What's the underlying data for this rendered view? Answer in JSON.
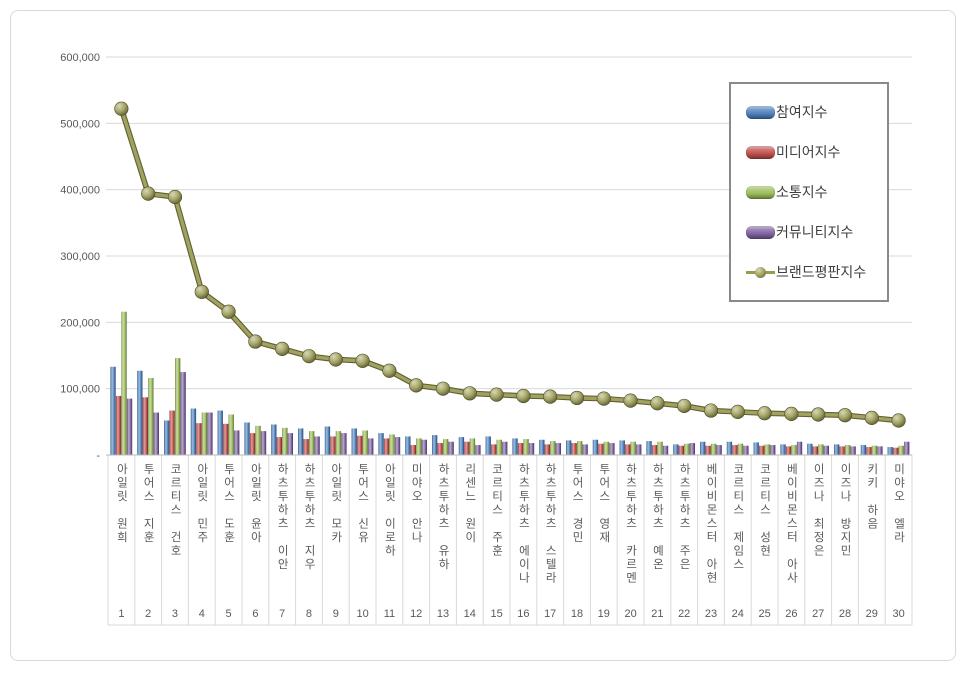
{
  "chart_data": {
    "type": "bar",
    "note": "grouped bar chart with overlaid line series (brand reputation ranking chart)",
    "categories": [
      "아일릿 원희",
      "투어스 지훈",
      "코르티스 건호",
      "아일릿 민주",
      "투어스 도훈",
      "아일릿 윤아",
      "하츠투하츠 이안",
      "하츠투하츠 지우",
      "아일릿 모카",
      "투어스 신유",
      "아일릿 이로하",
      "미야오 안나",
      "하츠투하츠 유하",
      "리센느 원이",
      "코르티스 주훈",
      "하츠투하츠 에이나",
      "하츠투하츠 스텔라",
      "투어스 경민",
      "투어스 영재",
      "하츠투하츠 카르멘",
      "하츠투하츠 예온",
      "하츠투하츠 주은",
      "베이비몬스터 아현",
      "코르티스 제임스",
      "코르티스 성현",
      "베이비몬스터 아사",
      "이즈나 최정은",
      "이즈나 방지민",
      "키키 하음",
      "미야오 엘라"
    ],
    "ranks": [
      "1",
      "2",
      "3",
      "4",
      "5",
      "6",
      "7",
      "8",
      "9",
      "10",
      "11",
      "12",
      "13",
      "14",
      "15",
      "16",
      "17",
      "18",
      "19",
      "20",
      "21",
      "22",
      "23",
      "24",
      "25",
      "26",
      "27",
      "28",
      "29",
      "30"
    ],
    "series": [
      {
        "name": "참여지수",
        "type": "bar",
        "color": "#4f81bd",
        "values": [
          133000,
          127000,
          52000,
          70000,
          67000,
          49000,
          46000,
          40000,
          43000,
          40000,
          33000,
          28000,
          30000,
          27000,
          28000,
          25000,
          23000,
          22000,
          23000,
          22000,
          21000,
          16000,
          20000,
          20000,
          19000,
          16000,
          17000,
          16000,
          15000,
          12000
        ]
      },
      {
        "name": "미디어지수",
        "type": "bar",
        "color": "#c0504d",
        "values": [
          89000,
          87000,
          67000,
          48000,
          47000,
          33000,
          27000,
          24000,
          28000,
          29000,
          25000,
          15000,
          18000,
          20000,
          16000,
          18000,
          16000,
          18000,
          17000,
          16000,
          15000,
          14000,
          14000,
          15000,
          14000,
          13000,
          13000,
          13000,
          12000,
          11000
        ]
      },
      {
        "name": "소통지수",
        "type": "bar",
        "color": "#9bbb59",
        "values": [
          216000,
          116000,
          146000,
          64000,
          61000,
          44000,
          41000,
          36000,
          36000,
          37000,
          31000,
          25000,
          24000,
          25000,
          23000,
          24000,
          21000,
          21000,
          20000,
          20000,
          20000,
          17000,
          17000,
          17000,
          16000,
          15000,
          16000,
          15000,
          14000,
          14000
        ]
      },
      {
        "name": "커뮤니티지수",
        "type": "bar",
        "color": "#8064a2",
        "values": [
          85000,
          64000,
          125000,
          64000,
          37000,
          36000,
          33000,
          28000,
          33000,
          25000,
          27000,
          23000,
          20000,
          15000,
          20000,
          18000,
          18000,
          16000,
          18000,
          16000,
          14000,
          18000,
          15000,
          14000,
          15000,
          20000,
          14000,
          13000,
          13000,
          20000
        ]
      },
      {
        "name": "브랜드평판지수",
        "type": "line",
        "color": "#9a9a52",
        "values": [
          522000,
          394000,
          389000,
          246000,
          216000,
          171000,
          160000,
          149000,
          144000,
          142000,
          127000,
          105000,
          100000,
          93000,
          91000,
          89000,
          88000,
          86000,
          85000,
          82000,
          78000,
          74000,
          67000,
          65000,
          63000,
          62000,
          61000,
          60000,
          56000,
          52000
        ]
      }
    ],
    "xlabel": "",
    "ylabel": "",
    "title": "",
    "ylim": [
      0,
      600000
    ],
    "y_axis": {
      "tick_values": [
        0,
        100000,
        200000,
        300000,
        400000,
        500000,
        600000
      ],
      "tick_labels": [
        "-",
        "100,000",
        "200,000",
        "300,000",
        "400,000",
        "500,000",
        "600,000"
      ]
    },
    "grid": "horizontal",
    "legend_position": "top-right"
  }
}
